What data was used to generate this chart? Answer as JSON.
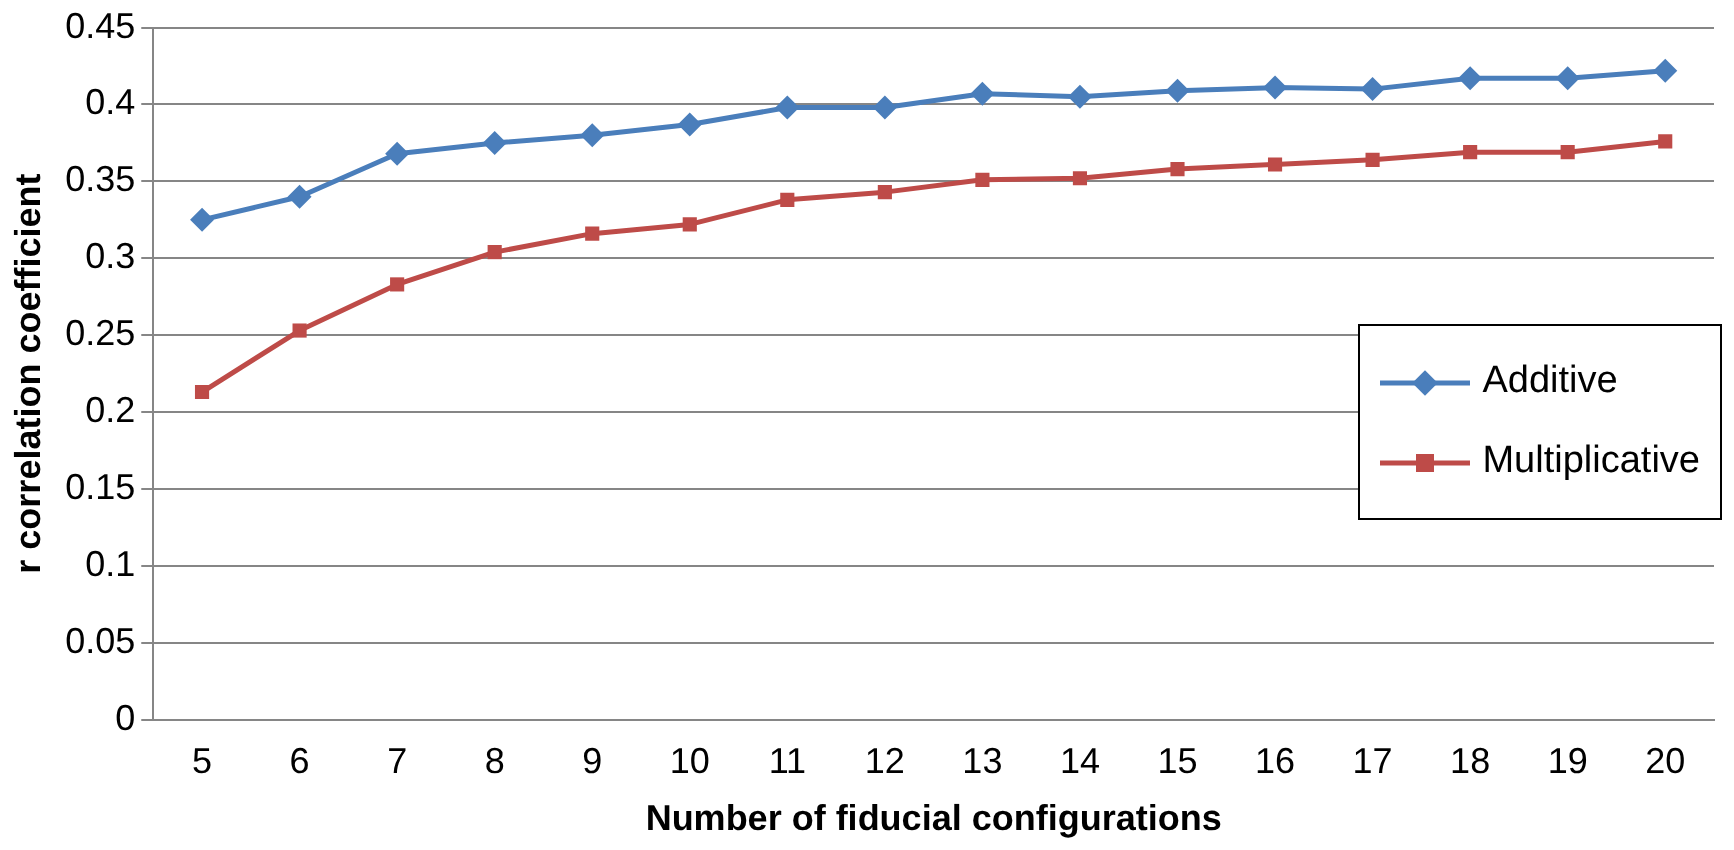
{
  "chart_data": {
    "type": "line",
    "xlabel": "Number of fiducial configurations",
    "ylabel": "r correlation coefficient",
    "categories": [
      "5",
      "6",
      "7",
      "8",
      "9",
      "10",
      "11",
      "12",
      "13",
      "14",
      "15",
      "16",
      "17",
      "18",
      "19",
      "20"
    ],
    "series": [
      {
        "name": "Additive",
        "color": "#4a7ebb",
        "marker": "diamond",
        "values": [
          0.325,
          0.34,
          0.368,
          0.375,
          0.38,
          0.387,
          0.398,
          0.398,
          0.407,
          0.405,
          0.409,
          0.411,
          0.41,
          0.417,
          0.417,
          0.422
        ]
      },
      {
        "name": "Multiplicative",
        "color": "#be4b48",
        "marker": "square",
        "values": [
          0.213,
          0.253,
          0.283,
          0.304,
          0.316,
          0.322,
          0.338,
          0.343,
          0.351,
          0.352,
          0.358,
          0.361,
          0.364,
          0.369,
          0.369,
          0.376
        ]
      }
    ],
    "ylim": [
      0,
      0.45
    ],
    "yticks": [
      0,
      0.05,
      0.1,
      0.15,
      0.2,
      0.25,
      0.3,
      0.35,
      0.4,
      0.45
    ],
    "grid": "y",
    "legend": "right"
  }
}
